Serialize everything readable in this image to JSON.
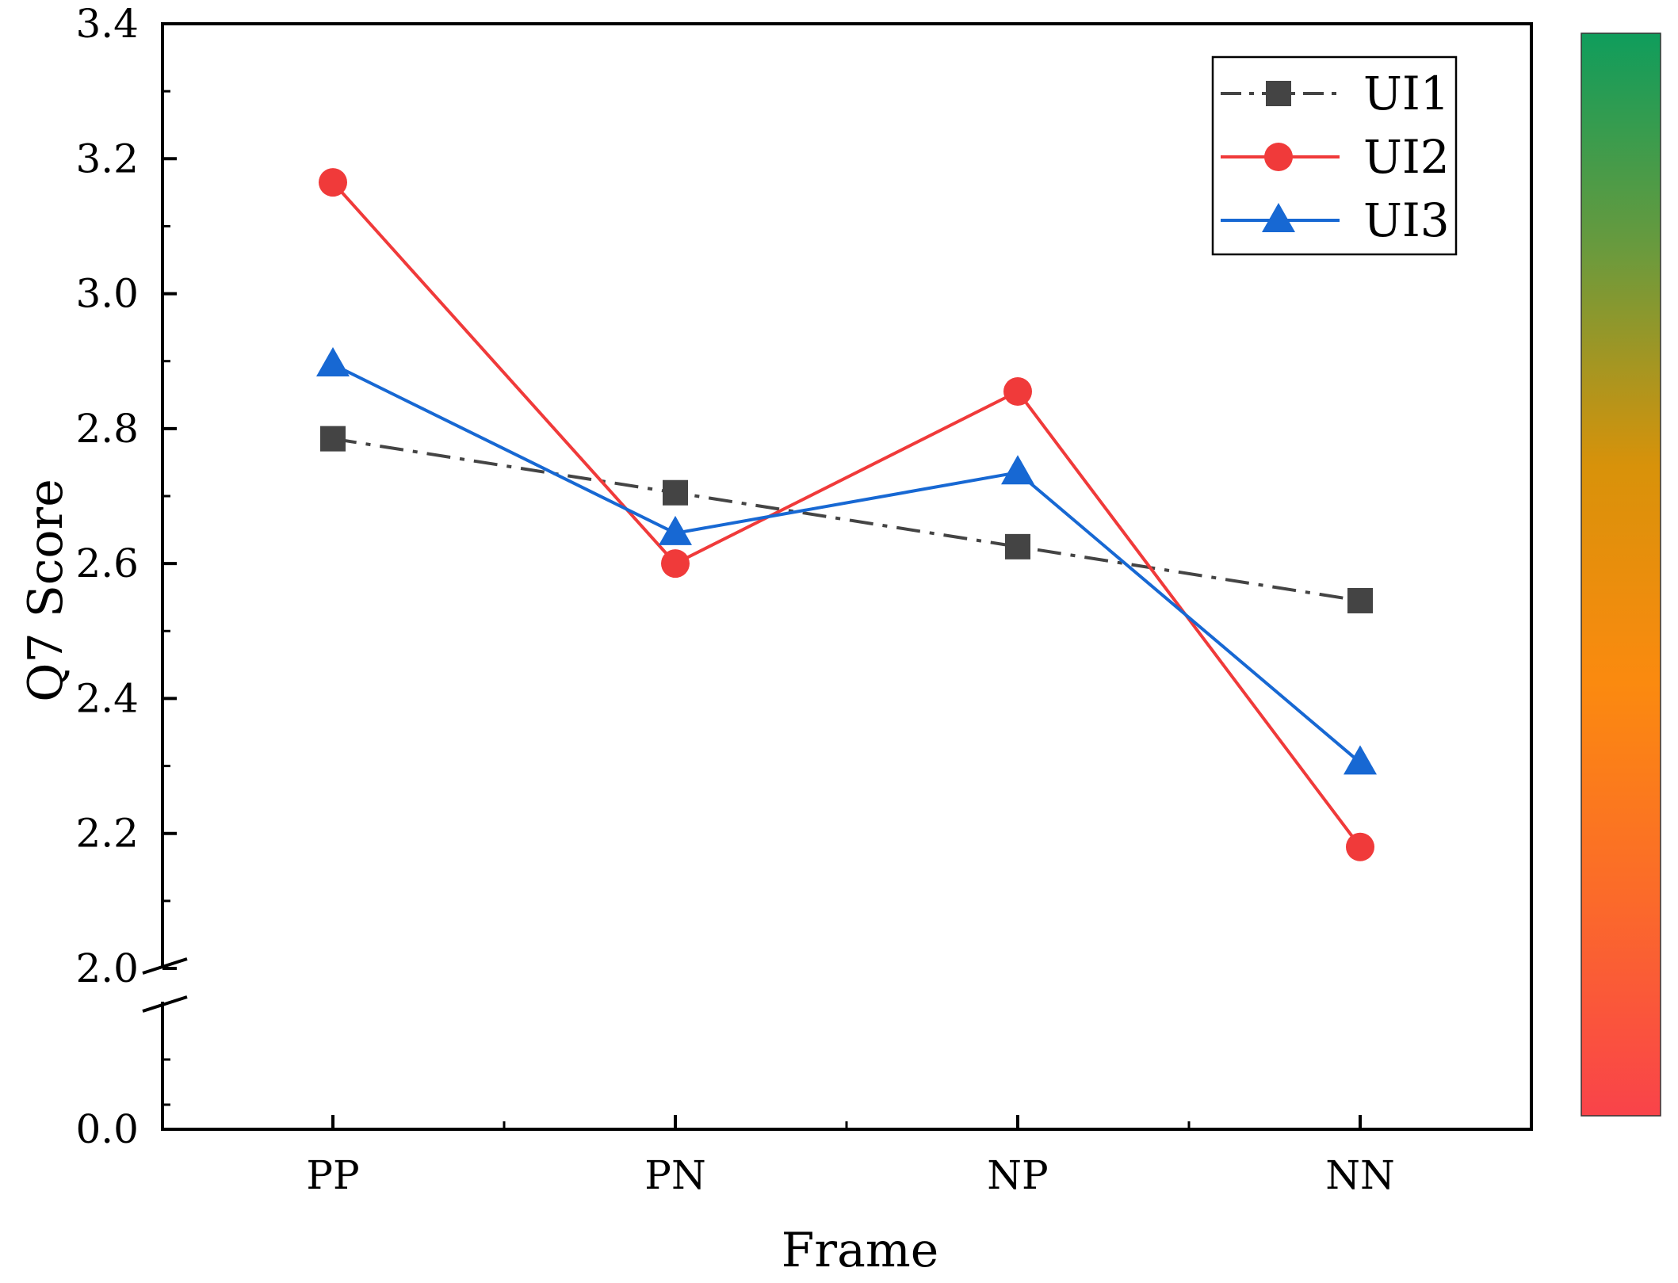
{
  "chart_data": {
    "type": "line",
    "title": "",
    "xlabel": "Frame",
    "ylabel": "Q7 Score",
    "categories": [
      "PP",
      "PN",
      "NP",
      "NN"
    ],
    "y_ticks": [
      "0.0",
      "2.0",
      "2.2",
      "2.4",
      "2.6",
      "2.8",
      "3.0",
      "3.2",
      "3.4"
    ],
    "y_break": {
      "lower": 0.0,
      "upper": 2.0
    },
    "ylim": [
      0,
      3.4
    ],
    "legend_position": "top-right",
    "series": [
      {
        "name": "UI1",
        "values": [
          2.785,
          2.705,
          2.625,
          2.545
        ],
        "color": "#444444",
        "marker": "square",
        "line_style": "dash-dot"
      },
      {
        "name": "UI2",
        "values": [
          3.165,
          2.6,
          2.855,
          2.18
        ],
        "color": "#f03a3a",
        "marker": "circle",
        "line_style": "solid"
      },
      {
        "name": "UI3",
        "values": [
          2.895,
          2.645,
          2.735,
          2.305
        ],
        "color": "#1768d3",
        "marker": "triangle",
        "line_style": "solid"
      }
    ],
    "colorbar": {
      "colors": [
        "#f9434a",
        "#fb6a2a",
        "#fb8a0f",
        "#d8920a",
        "#6a9a3d",
        "#0f9d5c"
      ]
    }
  }
}
